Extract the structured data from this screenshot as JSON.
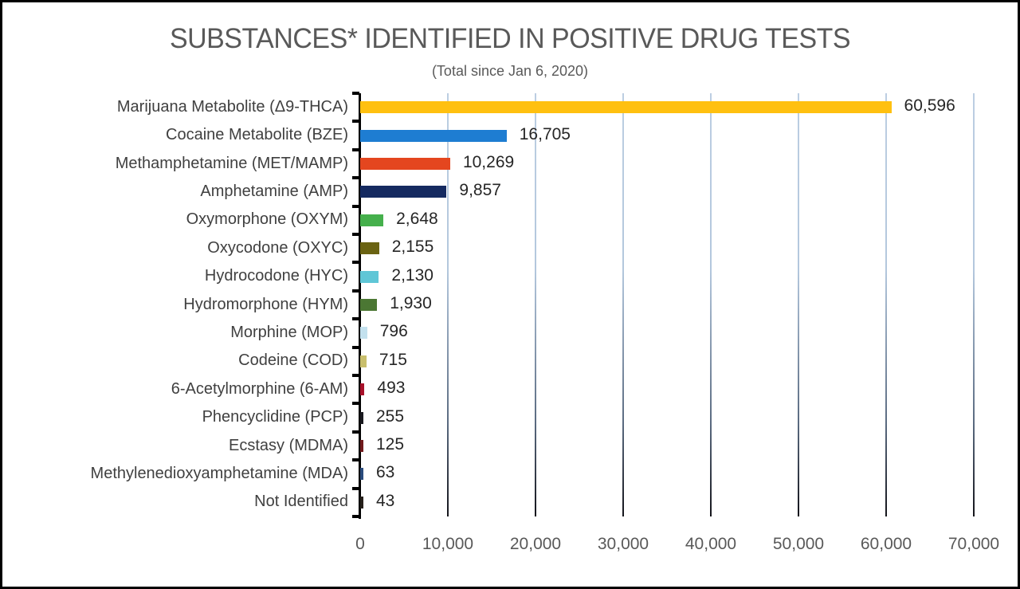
{
  "header": {
    "title": "SUBSTANCES* IDENTIFIED IN POSITIVE DRUG TESTS",
    "subtitle": "(Total since Jan 6, 2020)"
  },
  "chart_data": {
    "type": "bar",
    "orientation": "horizontal",
    "title": "SUBSTANCES* IDENTIFIED IN POSITIVE DRUG TESTS",
    "subtitle": "(Total since Jan 6, 2020)",
    "categories": [
      "Marijuana Metabolite (Δ9-THCA)",
      "Cocaine Metabolite (BZE)",
      "Methamphetamine (MET/MAMP)",
      "Amphetamine (AMP)",
      "Oxymorphone (OXYM)",
      "Oxycodone (OXYC)",
      "Hydrocodone (HYC)",
      "Hydromorphone (HYM)",
      "Morphine (MOP)",
      "Codeine (COD)",
      "6-Acetylmorphine (6-AM)",
      "Phencyclidine (PCP)",
      "Ecstasy (MDMA)",
      "Methylenedioxyamphetamine (MDA)",
      "Not Identified"
    ],
    "values": [
      60596,
      16705,
      10269,
      9857,
      2648,
      2155,
      2130,
      1930,
      796,
      715,
      493,
      255,
      125,
      63,
      43
    ],
    "value_labels": [
      "60,596",
      "16,705",
      "10,269",
      "9,857",
      "2,648",
      "2,155",
      "2,130",
      "1,930",
      "796",
      "715",
      "493",
      "255",
      "125",
      "63",
      "43"
    ],
    "bar_colors": [
      "#FFC010",
      "#1E7DD2",
      "#E4461F",
      "#152A60",
      "#45B04C",
      "#6A6312",
      "#5FC6D6",
      "#4B7733",
      "#C3E1EE",
      "#C9BF6D",
      "#A8112A",
      "#1A1A20",
      "#70191C",
      "#2A4B7C",
      "#26201B"
    ],
    "xlim": [
      0,
      70000
    ],
    "x_ticks": [
      0,
      10000,
      20000,
      30000,
      40000,
      50000,
      60000,
      70000
    ],
    "x_tick_labels": [
      "0",
      "10,000",
      "20,000",
      "30,000",
      "40,000",
      "50,000",
      "60,000",
      "70,000"
    ],
    "grid": true,
    "legend": "none",
    "colors": {
      "gridline_top": "#BCCEE2",
      "gridline_bottom": "#14141A",
      "axis": "#000000",
      "title_text": "#595959",
      "category_text": "#404040",
      "value_text": "#262626",
      "tick_text": "#595959",
      "frame_border": "#000000"
    }
  }
}
